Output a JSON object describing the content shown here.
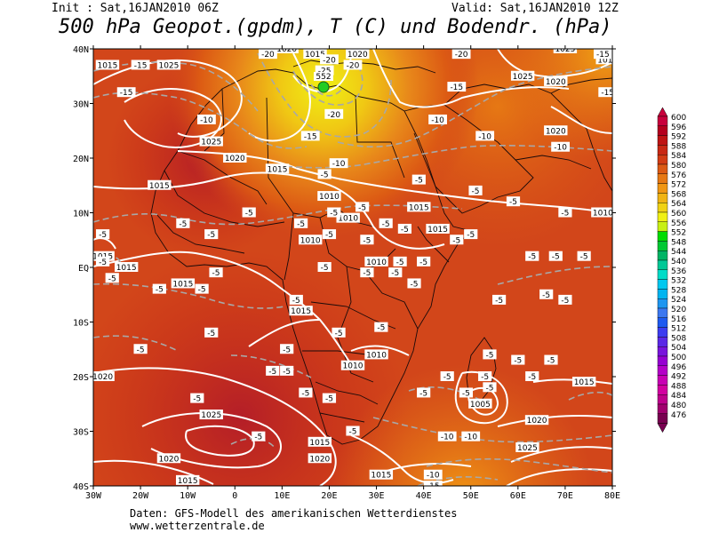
{
  "header": {
    "init": "Init : Sat,16JAN2010 06Z",
    "valid": "Valid: Sat,16JAN2010 12Z",
    "title": "500 hPa Geopot.(gpdm), T (C) und Bodendr. (hPa)"
  },
  "footer": {
    "line1": "Daten: GFS-Modell des amerikanischen Wetterdienstes",
    "line2": "www.wetterzentrale.de"
  },
  "axes": {
    "lat_labels": [
      "40N",
      "30N",
      "20N",
      "10N",
      "EQ",
      "10S",
      "20S",
      "30S",
      "40S"
    ],
    "lon_labels": [
      "30W",
      "20W",
      "10W",
      "0",
      "10E",
      "20E",
      "30E",
      "40E",
      "50E",
      "60E",
      "70E",
      "80E"
    ]
  },
  "colorbar": {
    "values": [
      "600",
      "596",
      "592",
      "588",
      "584",
      "580",
      "576",
      "572",
      "568",
      "564",
      "560",
      "556",
      "552",
      "548",
      "544",
      "540",
      "536",
      "532",
      "528",
      "524",
      "520",
      "516",
      "512",
      "508",
      "504",
      "500",
      "496",
      "492",
      "488",
      "484",
      "480",
      "476"
    ],
    "colors": [
      "#c8003c",
      "#b4001e",
      "#be1414",
      "#c82814",
      "#d23c14",
      "#dc5a14",
      "#e67814",
      "#f09614",
      "#f0b414",
      "#f0d214",
      "#f0f014",
      "#c8f014",
      "#00dc00",
      "#00c832",
      "#00b464",
      "#00c896",
      "#00dcc8",
      "#00c8f0",
      "#00b4f0",
      "#1e96f0",
      "#3c78f0",
      "#1e5af0",
      "#3c3cf0",
      "#5a28e6",
      "#7814dc",
      "#9600d2",
      "#b400c8",
      "#c800b4",
      "#d200a0",
      "#be008c",
      "#a0006e",
      "#780050"
    ]
  },
  "marker": {
    "label": "552",
    "color": "#22cc22"
  },
  "pressure_labels": [
    {
      "text": "1015",
      "lon": -27,
      "lat": 37
    },
    {
      "text": "1025",
      "lon": -14,
      "lat": 37
    },
    {
      "text": "1025",
      "lon": -5,
      "lat": 23
    },
    {
      "text": "1020",
      "lon": 0,
      "lat": 20
    },
    {
      "text": "1015",
      "lon": 9,
      "lat": 18
    },
    {
      "text": "1015",
      "lon": -16,
      "lat": 15
    },
    {
      "text": "1020",
      "lon": 11,
      "lat": 40
    },
    {
      "text": "1015",
      "lon": 17,
      "lat": 39
    },
    {
      "text": "1020",
      "lon": 26,
      "lat": 39
    },
    {
      "text": "1010",
      "lon": 20,
      "lat": 13
    },
    {
      "text": "1010",
      "lon": 24,
      "lat": 9
    },
    {
      "text": "1015",
      "lon": 39,
      "lat": 11
    },
    {
      "text": "1015",
      "lon": 43,
      "lat": 7
    },
    {
      "text": "1010",
      "lon": 16,
      "lat": 5
    },
    {
      "text": "1010",
      "lon": 30,
      "lat": 1
    },
    {
      "text": "1015",
      "lon": -23,
      "lat": 0
    },
    {
      "text": "1015",
      "lon": -11,
      "lat": -3
    },
    {
      "text": "1015",
      "lon": 14,
      "lat": -8
    },
    {
      "text": "1010",
      "lon": 25,
      "lat": -18
    },
    {
      "text": "1010",
      "lon": 30,
      "lat": -16
    },
    {
      "text": "1020",
      "lon": -28,
      "lat": -20
    },
    {
      "text": "1025",
      "lon": -5,
      "lat": -27
    },
    {
      "text": "1020",
      "lon": -14,
      "lat": -35
    },
    {
      "text": "1015",
      "lon": -10,
      "lat": -39
    },
    {
      "text": "1015",
      "lon": 18,
      "lat": -32
    },
    {
      "text": "1020",
      "lon": 18,
      "lat": -35
    },
    {
      "text": "1015",
      "lon": 31,
      "lat": -38
    },
    {
      "text": "1005",
      "lon": 52,
      "lat": -25
    },
    {
      "text": "1020",
      "lon": 64,
      "lat": -28
    },
    {
      "text": "1025",
      "lon": 62,
      "lat": -33
    },
    {
      "text": "1015",
      "lon": 74,
      "lat": -21
    },
    {
      "text": "1025",
      "lon": 70,
      "lat": 40
    },
    {
      "text": "1025",
      "lon": 61,
      "lat": 35
    },
    {
      "text": "1020",
      "lon": 68,
      "lat": 34
    },
    {
      "text": "1020",
      "lon": 68,
      "lat": 25
    },
    {
      "text": "1015",
      "lon": 79,
      "lat": 38
    },
    {
      "text": "1010",
      "lon": 78,
      "lat": 10
    },
    {
      "text": "1015",
      "lon": -28,
      "lat": 2
    }
  ],
  "temp_labels": [
    {
      "text": "-15",
      "lon": -20,
      "lat": 37
    },
    {
      "text": "-15",
      "lon": -23,
      "lat": 32
    },
    {
      "text": "-10",
      "lon": -6,
      "lat": 27
    },
    {
      "text": "-20",
      "lon": 7,
      "lat": 39
    },
    {
      "text": "-25",
      "lon": 19,
      "lat": 36
    },
    {
      "text": "-20",
      "lon": 20,
      "lat": 38
    },
    {
      "text": "-20",
      "lon": 25,
      "lat": 37
    },
    {
      "text": "-20",
      "lon": 21,
      "lat": 28
    },
    {
      "text": "-15",
      "lon": 16,
      "lat": 24
    },
    {
      "text": "-10",
      "lon": 22,
      "lat": 19
    },
    {
      "text": "-20",
      "lon": 48,
      "lat": 39
    },
    {
      "text": "-15",
      "lon": 47,
      "lat": 33
    },
    {
      "text": "-10",
      "lon": 43,
      "lat": 27
    },
    {
      "text": "-10",
      "lon": 53,
      "lat": 24
    },
    {
      "text": "-10",
      "lon": 69,
      "lat": 22
    },
    {
      "text": "-15",
      "lon": 79,
      "lat": 32
    },
    {
      "text": "-15",
      "lon": 78,
      "lat": 39
    },
    {
      "text": "-5",
      "lon": 19,
      "lat": 17
    },
    {
      "text": "-5",
      "lon": 39,
      "lat": 16
    },
    {
      "text": "-5",
      "lon": 51,
      "lat": 14
    },
    {
      "text": "-5",
      "lon": 59,
      "lat": 12
    },
    {
      "text": "-5",
      "lon": 70,
      "lat": 10
    },
    {
      "text": "-5",
      "lon": 3,
      "lat": 10
    },
    {
      "text": "-5",
      "lon": -11,
      "lat": 8
    },
    {
      "text": "-5",
      "lon": -5,
      "lat": 6
    },
    {
      "text": "-5",
      "lon": 14,
      "lat": 8
    },
    {
      "text": "-5",
      "lon": 21,
      "lat": 10
    },
    {
      "text": "-5",
      "lon": 27,
      "lat": 11
    },
    {
      "text": "-5",
      "lon": 32,
      "lat": 8
    },
    {
      "text": "-5",
      "lon": 20,
      "lat": 6
    },
    {
      "text": "-5",
      "lon": 28,
      "lat": 5
    },
    {
      "text": "-5",
      "lon": 36,
      "lat": 7
    },
    {
      "text": "-5",
      "lon": -28,
      "lat": 1
    },
    {
      "text": "-5",
      "lon": -16,
      "lat": -4
    },
    {
      "text": "-5",
      "lon": -4,
      "lat": -1
    },
    {
      "text": "-5",
      "lon": -7,
      "lat": -4
    },
    {
      "text": "-5",
      "lon": 19,
      "lat": 0
    },
    {
      "text": "-5",
      "lon": 35,
      "lat": 1
    },
    {
      "text": "-5",
      "lon": 40,
      "lat": 1
    },
    {
      "text": "-5",
      "lon": 47,
      "lat": 5
    },
    {
      "text": "-5",
      "lon": 50,
      "lat": 6
    },
    {
      "text": "-5",
      "lon": 63,
      "lat": 2
    },
    {
      "text": "-5",
      "lon": 68,
      "lat": 2
    },
    {
      "text": "-5",
      "lon": 74,
      "lat": 2
    },
    {
      "text": "-5",
      "lon": 13,
      "lat": -6
    },
    {
      "text": "-5",
      "lon": 28,
      "lat": -1
    },
    {
      "text": "-5",
      "lon": 34,
      "lat": -1
    },
    {
      "text": "-5",
      "lon": 38,
      "lat": -3
    },
    {
      "text": "-5",
      "lon": 56,
      "lat": -6
    },
    {
      "text": "-5",
      "lon": 66,
      "lat": -5
    },
    {
      "text": "-5",
      "lon": 70,
      "lat": -6
    },
    {
      "text": "-5",
      "lon": -20,
      "lat": -15
    },
    {
      "text": "-5",
      "lon": -5,
      "lat": -12
    },
    {
      "text": "-5",
      "lon": 11,
      "lat": -15
    },
    {
      "text": "-5",
      "lon": 22,
      "lat": -12
    },
    {
      "text": "-5",
      "lon": 31,
      "lat": -11
    },
    {
      "text": "-5",
      "lon": 54,
      "lat": -16
    },
    {
      "text": "-5",
      "lon": 60,
      "lat": -17
    },
    {
      "text": "-5",
      "lon": 67,
      "lat": -17
    },
    {
      "text": "-5",
      "lon": 8,
      "lat": -19
    },
    {
      "text": "-5",
      "lon": 11,
      "lat": -19
    },
    {
      "text": "-5",
      "lon": 45,
      "lat": -20
    },
    {
      "text": "-5",
      "lon": 53,
      "lat": -20
    },
    {
      "text": "-5",
      "lon": 63,
      "lat": -20
    },
    {
      "text": "-5",
      "lon": -8,
      "lat": -24
    },
    {
      "text": "-5",
      "lon": 15,
      "lat": -23
    },
    {
      "text": "-5",
      "lon": 20,
      "lat": -24
    },
    {
      "text": "-5",
      "lon": 40,
      "lat": -23
    },
    {
      "text": "-5",
      "lon": 49,
      "lat": -23
    },
    {
      "text": "-5",
      "lon": 54,
      "lat": -22
    },
    {
      "text": "-5",
      "lon": 5,
      "lat": -31
    },
    {
      "text": "-5",
      "lon": 25,
      "lat": -30
    },
    {
      "text": "-10",
      "lon": 45,
      "lat": -31
    },
    {
      "text": "-10",
      "lon": 50,
      "lat": -31
    },
    {
      "text": "-10",
      "lon": 42,
      "lat": -38
    },
    {
      "text": "-15",
      "lon": 42,
      "lat": -40
    },
    {
      "text": "-5",
      "lon": -28,
      "lat": 6
    },
    {
      "text": "-5",
      "lon": -26,
      "lat": -2
    }
  ]
}
